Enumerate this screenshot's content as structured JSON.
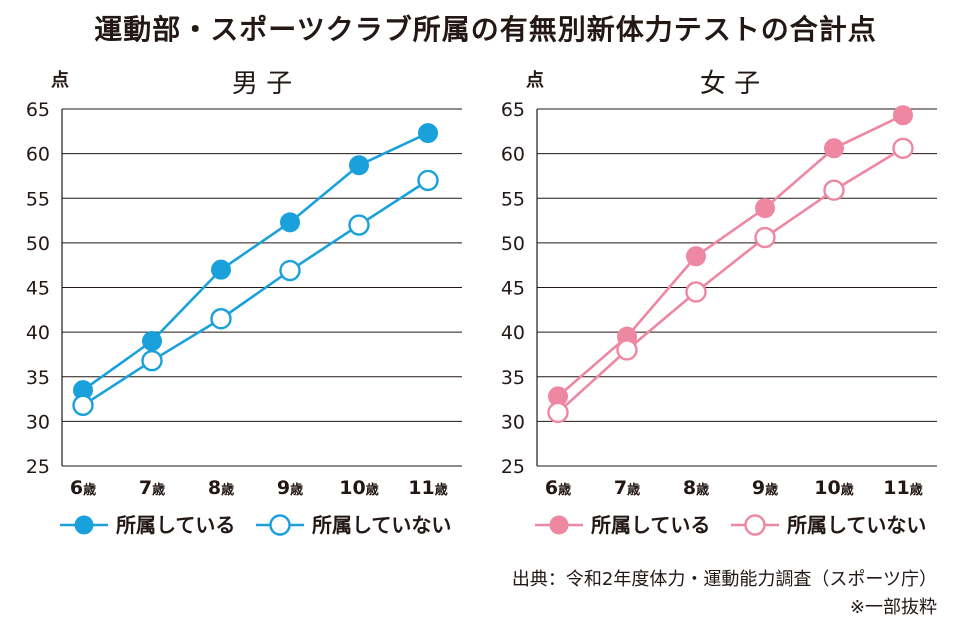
{
  "title": "運動部・スポーツクラブ所属の有無別新体力テストの合計点",
  "source": "出典：令和2年度体力・運動能力調査（スポーツ庁）",
  "note": "※一部抜粋",
  "colors": {
    "boys": "#1aa1db",
    "girls": "#ee87a2",
    "grid": "#231815"
  },
  "chart_data": [
    {
      "type": "line",
      "title": "男 子",
      "ylabel": "点",
      "ylim": [
        25,
        65
      ],
      "yticks": [
        "25",
        "30",
        "35",
        "40",
        "45",
        "50",
        "55",
        "60",
        "65"
      ],
      "categories": [
        "6",
        "7",
        "8",
        "9",
        "10",
        "11"
      ],
      "category_suffix": "歳",
      "legend_position": "bottom",
      "series": [
        {
          "name": "所属している",
          "marker": "filled",
          "values": [
            33.5,
            39.0,
            47.0,
            52.3,
            58.7,
            62.3
          ]
        },
        {
          "name": "所属していない",
          "marker": "hollow",
          "values": [
            31.8,
            36.8,
            41.5,
            46.9,
            52.0,
            57.0
          ]
        }
      ]
    },
    {
      "type": "line",
      "title": "女 子",
      "ylabel": "点",
      "ylim": [
        25,
        65
      ],
      "yticks": [
        "25",
        "30",
        "35",
        "40",
        "45",
        "50",
        "55",
        "60",
        "65"
      ],
      "categories": [
        "6",
        "7",
        "8",
        "9",
        "10",
        "11"
      ],
      "category_suffix": "歳",
      "legend_position": "bottom",
      "series": [
        {
          "name": "所属している",
          "marker": "filled",
          "values": [
            32.8,
            39.5,
            48.5,
            53.9,
            60.6,
            64.3
          ]
        },
        {
          "name": "所属していない",
          "marker": "hollow",
          "values": [
            31.0,
            38.0,
            44.5,
            50.6,
            55.9,
            60.6
          ]
        }
      ]
    }
  ]
}
